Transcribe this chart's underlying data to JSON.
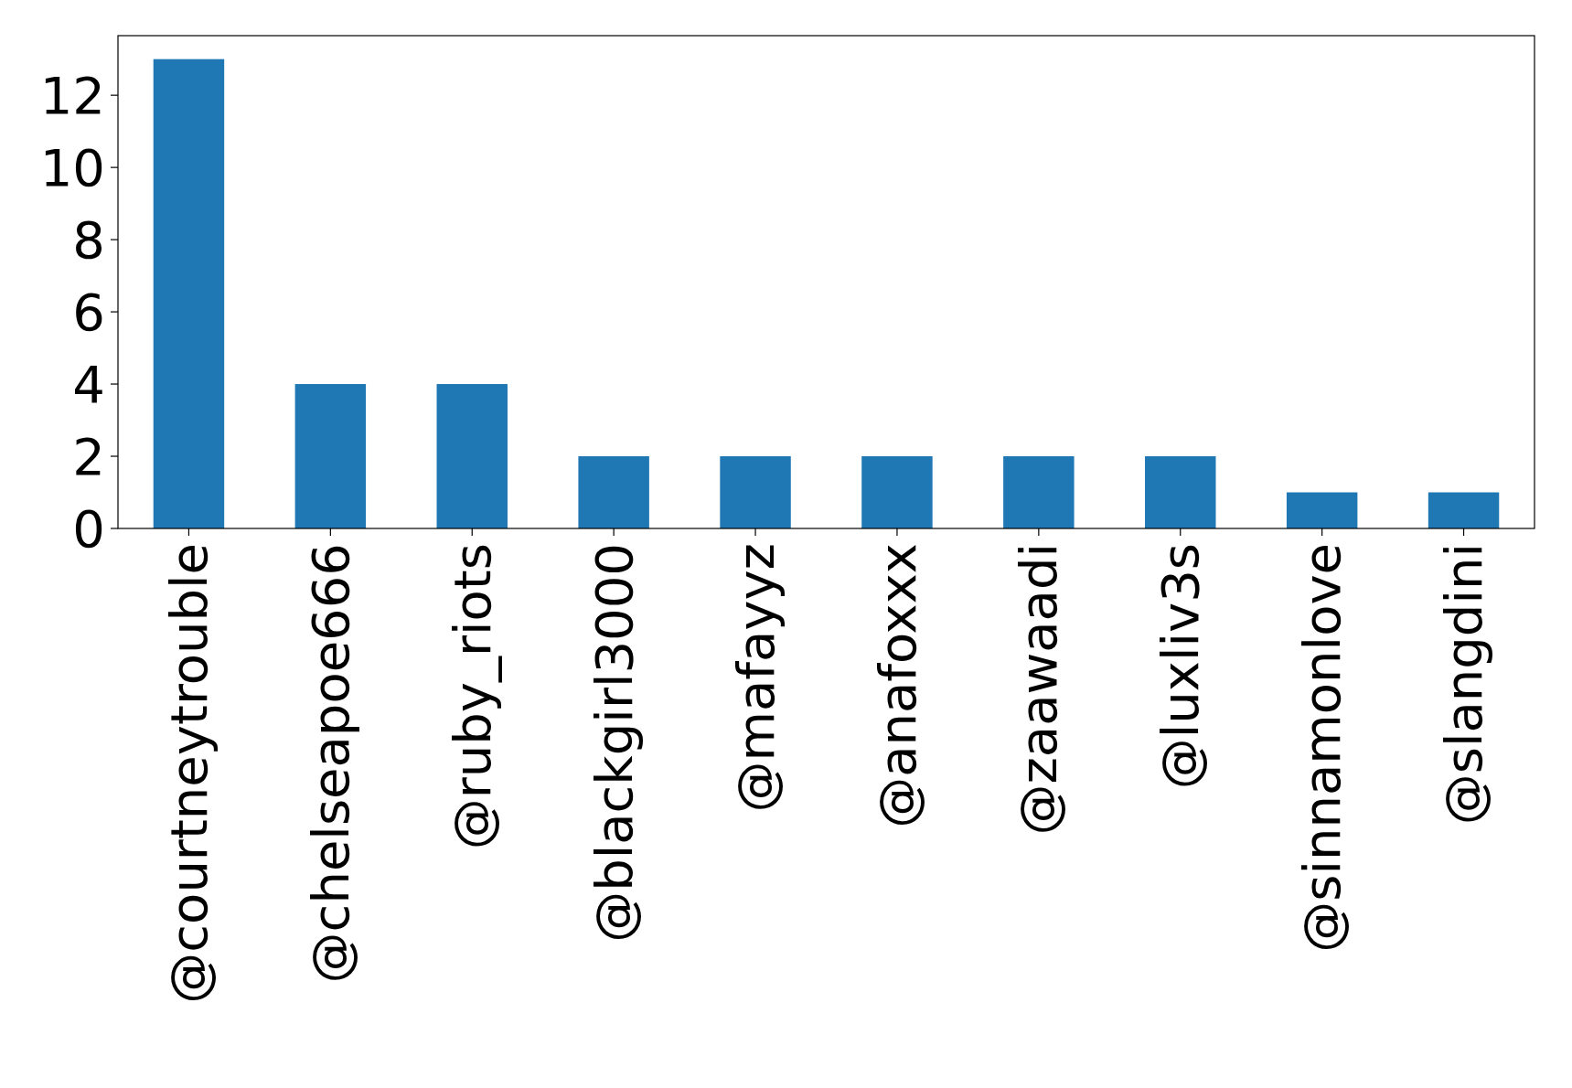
{
  "chart_data": {
    "type": "bar",
    "categories": [
      "@courtneytrouble",
      "@chelseapoe666",
      "@ruby_riots",
      "@blackgirl3000",
      "@mafayyz",
      "@anafoxxx",
      "@zaawaadi",
      "@luxliv3s",
      "@sinnamonlove",
      "@slangdini"
    ],
    "values": [
      13,
      4,
      4,
      2,
      2,
      2,
      2,
      2,
      1,
      1
    ],
    "color": "#1f77b4",
    "ylim": [
      0,
      13.65
    ],
    "yticks": [
      0,
      2,
      4,
      6,
      8,
      10,
      12
    ],
    "grid": false
  }
}
